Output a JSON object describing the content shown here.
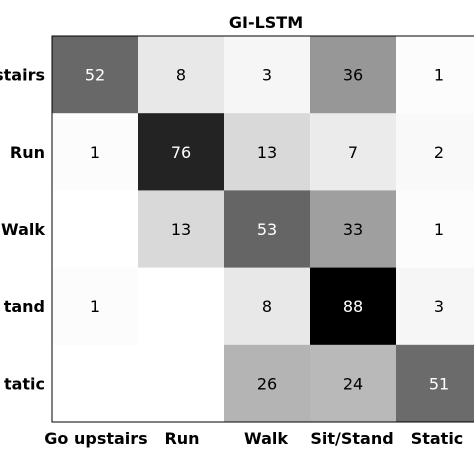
{
  "chart_data": {
    "type": "heatmap",
    "title": "GI-LSTM",
    "x_categories": [
      "Go upstairs",
      "Run",
      "Walk",
      "Sit/Stand",
      "Static"
    ],
    "y_categories": [
      "Go upstairs",
      "Run",
      "Walk",
      "Sit/Stand",
      "Static"
    ],
    "y_tick_labels_shown": [
      "upstairs",
      "Run",
      "Walk",
      "tand",
      "tatic"
    ],
    "values": [
      [
        52,
        8,
        3,
        36,
        1
      ],
      [
        1,
        76,
        13,
        7,
        2
      ],
      [
        null,
        13,
        53,
        33,
        1
      ],
      [
        1,
        null,
        8,
        88,
        3
      ],
      [
        null,
        null,
        26,
        24,
        51
      ]
    ],
    "vmin": 0,
    "vmax": 88,
    "colormap": "grayscale-reversed",
    "grid": false
  }
}
